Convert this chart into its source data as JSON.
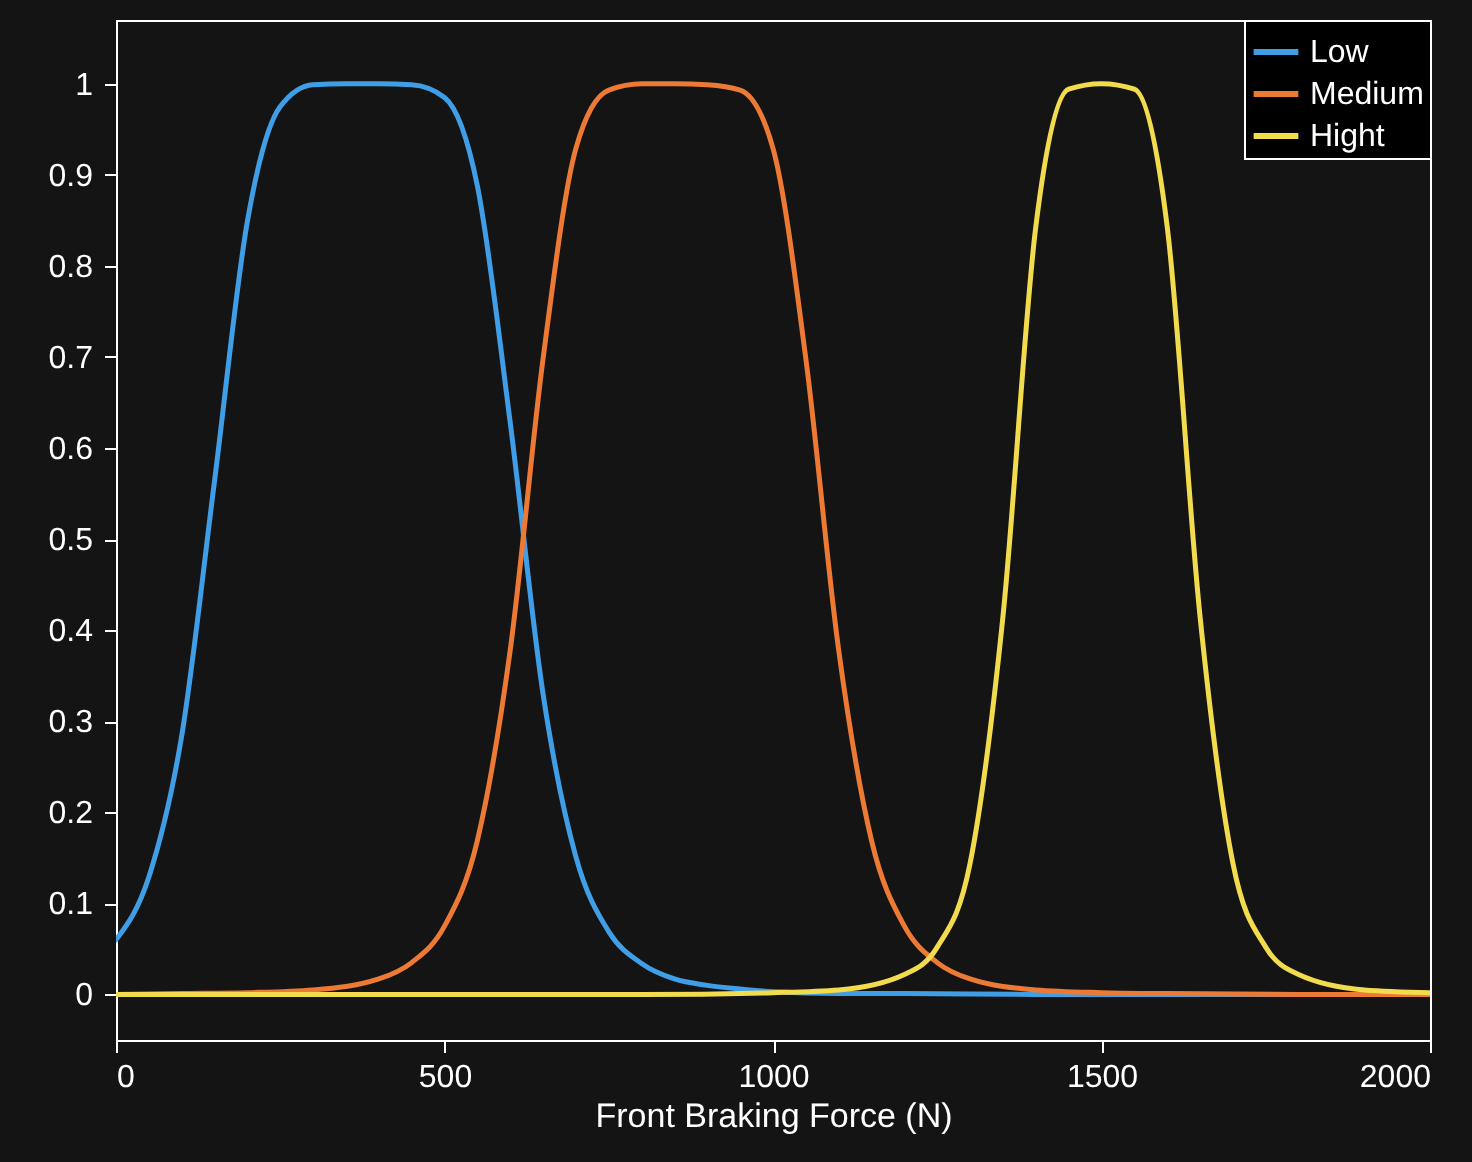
{
  "chart_data": {
    "type": "line",
    "xlabel": "Front Braking Force (N)",
    "xlim": [
      0,
      2000
    ],
    "ylim": [
      -0.05,
      1.07
    ],
    "xticks": [
      0,
      500,
      1000,
      1500,
      2000
    ],
    "yticks": [
      0,
      0.1,
      0.2,
      0.3,
      0.4,
      0.5,
      0.6,
      0.7,
      0.8,
      0.9,
      1
    ],
    "grid": false,
    "legend": "top right",
    "line_style": "solid",
    "marker": "none",
    "series": [
      {
        "name": "Low",
        "color": "#3f9ee6",
        "x": [
          0,
          50,
          100,
          150,
          200,
          250,
          300,
          350,
          400,
          450,
          500,
          550,
          600,
          650,
          700,
          750,
          800,
          850,
          900,
          950,
          1000,
          1100,
          1200,
          1400,
          1600,
          1800,
          2000
        ],
        "values": [
          0.06,
          0.129,
          0.284,
          0.564,
          0.849,
          0.975,
          0.999,
          1,
          1,
          0.999,
          0.985,
          0.888,
          0.628,
          0.33,
          0.151,
          0.069,
          0.034,
          0.017,
          0.01,
          0.006,
          0.003,
          0.001,
          0.001,
          0,
          0,
          0,
          0
        ]
      },
      {
        "name": "Medium",
        "color": "#ec7a34",
        "x": [
          0,
          100,
          200,
          300,
          400,
          450,
          500,
          550,
          600,
          650,
          700,
          750,
          800,
          850,
          900,
          950,
          1000,
          1050,
          1100,
          1150,
          1200,
          1250,
          1300,
          1400,
          1500,
          1600,
          1800,
          2000
        ],
        "values": [
          0,
          0.001,
          0.002,
          0.005,
          0.017,
          0.035,
          0.075,
          0.169,
          0.378,
          0.698,
          0.929,
          0.993,
          1,
          1,
          0.999,
          0.993,
          0.929,
          0.698,
          0.378,
          0.169,
          0.075,
          0.035,
          0.017,
          0.005,
          0.002,
          0.001,
          0,
          0
        ]
      },
      {
        "name": "Hight",
        "color": "#f2dc4e",
        "x": [
          0,
          500,
          800,
          1000,
          1100,
          1200,
          1250,
          1300,
          1350,
          1400,
          1450,
          1500,
          1550,
          1600,
          1650,
          1700,
          1750,
          1800,
          1900,
          2000
        ],
        "values": [
          0,
          0,
          0,
          0.002,
          0.005,
          0.022,
          0.052,
          0.144,
          0.415,
          0.843,
          0.994,
          1,
          0.994,
          0.843,
          0.415,
          0.144,
          0.052,
          0.022,
          0.005,
          0.002
        ]
      }
    ]
  }
}
